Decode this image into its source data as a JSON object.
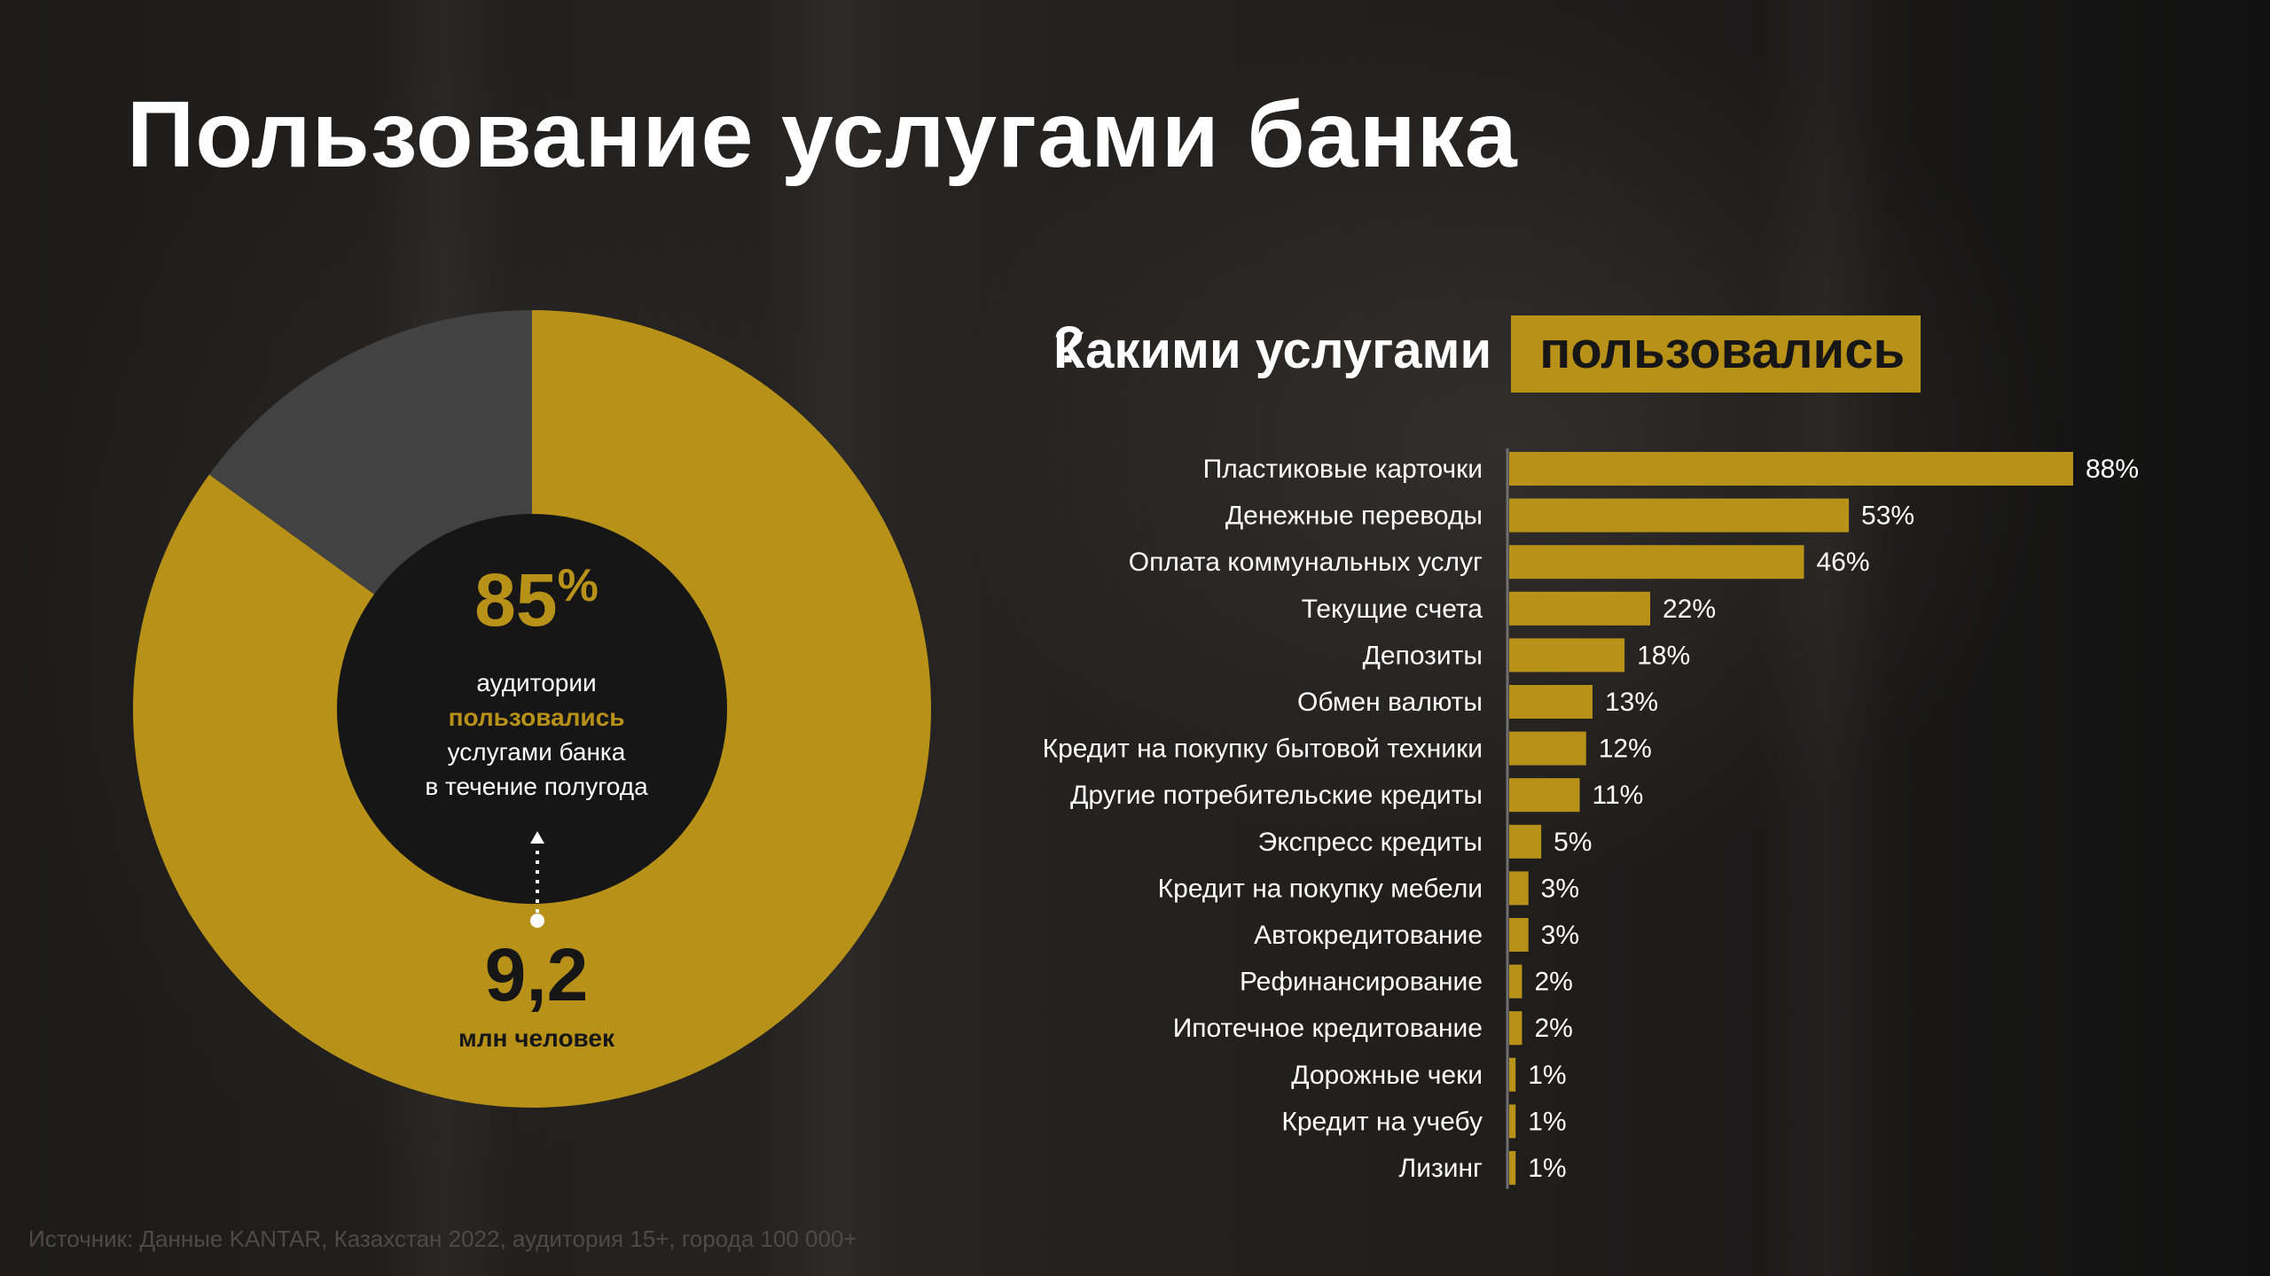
{
  "title": "Пользование услугами банка",
  "subtitle": {
    "plain": "Какими услугами",
    "highlight": "пользовались",
    "question": "?"
  },
  "donut": {
    "percent": "85",
    "percent_sign": "%",
    "value": 85,
    "caption_line1": "аудитории",
    "caption_line2": "пользовались",
    "caption_line3": "услугами банка",
    "caption_line4": "в течение полугода",
    "bottom_value": "9,2",
    "bottom_unit": "млн человек"
  },
  "colors": {
    "accent": "#b89119",
    "gray_slice": "#424242",
    "hole": "#161616",
    "text": "#ffffff",
    "axis": "#6f6f6f"
  },
  "chart_data": {
    "type": "bar",
    "orientation": "horizontal",
    "title": "Какими услугами пользовались?",
    "xlim": [
      0,
      100
    ],
    "categories": [
      "Пластиковые карточки",
      "Денежные переводы",
      "Оплата коммунальных услуг",
      "Текущие счета",
      "Депозиты",
      "Обмен валюты",
      "Кредит на покупку бытовой техники",
      "Другие потребительские кредиты",
      "Экспресс кредиты",
      "Кредит на покупку мебели",
      "Автокредитование",
      "Рефинансирование",
      "Ипотечное кредитование",
      "Дорожные чеки",
      "Кредит на учебу",
      "Лизинг"
    ],
    "values": [
      88,
      53,
      46,
      22,
      18,
      13,
      12,
      11,
      5,
      3,
      3,
      2,
      2,
      1,
      1,
      1
    ],
    "value_labels": [
      "88%",
      "53%",
      "46%",
      "22%",
      "18%",
      "13%",
      "12%",
      "11%",
      "5%",
      "3%",
      "3%",
      "2%",
      "2%",
      "1%",
      "1%",
      "1%"
    ]
  },
  "source": "Источник: Данные KANTAR, Казахстан 2022, аудитория 15+, города 100 000+"
}
